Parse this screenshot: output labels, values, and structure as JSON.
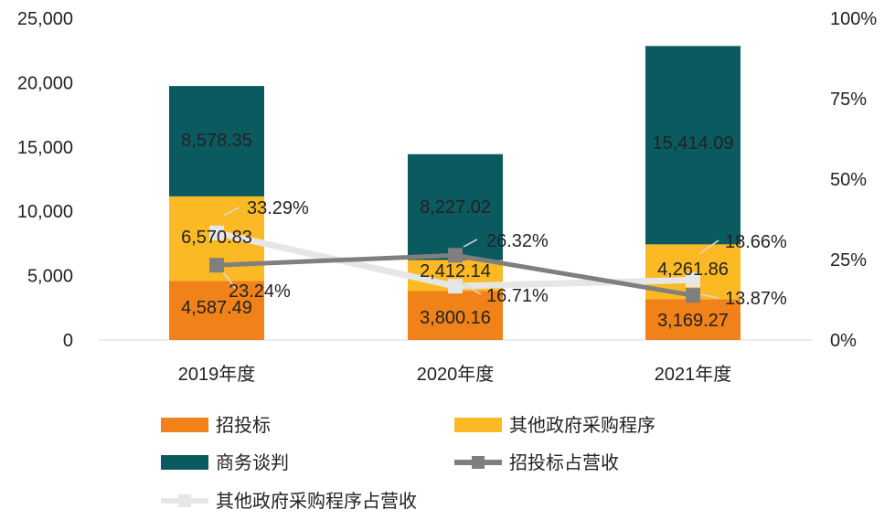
{
  "chart_data": {
    "type": "bar",
    "stacked": true,
    "categories": [
      "2019年度",
      "2020年度",
      "2021年度"
    ],
    "series": [
      {
        "name": "招投标",
        "kind": "bar",
        "axis": "left",
        "color": "#F08219",
        "values": [
          4587.49,
          3800.16,
          3169.27
        ],
        "labels": [
          "4,587.49",
          "3,800.16",
          "3,169.27"
        ]
      },
      {
        "name": "其他政府采购程序",
        "kind": "bar",
        "axis": "left",
        "color": "#FBB924",
        "values": [
          6570.83,
          2412.14,
          4261.86
        ],
        "labels": [
          "6,570.83",
          "2,412.14",
          "4,261.86"
        ]
      },
      {
        "name": "商务谈判",
        "kind": "bar",
        "axis": "left",
        "color": "#0B5A5F",
        "values": [
          8578.35,
          8227.02,
          15414.09
        ],
        "labels": [
          "8,578.35",
          "8,227.02",
          "15,414.09"
        ]
      },
      {
        "name": "招投标占营收",
        "kind": "line",
        "axis": "right",
        "color": "#7F7F7F",
        "values": [
          23.24,
          26.32,
          13.87
        ],
        "labels": [
          "23.24%",
          "26.32%",
          "13.87%"
        ]
      },
      {
        "name": "其他政府采购程序占营收",
        "kind": "line",
        "axis": "right",
        "color": "#E6E6E6",
        "values": [
          33.29,
          16.71,
          18.66
        ],
        "labels": [
          "33.29%",
          "16.71%",
          "18.66%"
        ]
      }
    ],
    "y_left": {
      "min": 0,
      "max": 25000,
      "ticks": [
        "0",
        "5,000",
        "10,000",
        "15,000",
        "20,000",
        "25,000"
      ],
      "tick_values": [
        0,
        5000,
        10000,
        15000,
        20000,
        25000
      ]
    },
    "y_right": {
      "min": 0,
      "max": 100,
      "ticks": [
        "0%",
        "25%",
        "50%",
        "75%",
        "100%"
      ],
      "tick_values": [
        0,
        25,
        50,
        75,
        100
      ]
    },
    "grid": false,
    "legend_position": "bottom"
  }
}
